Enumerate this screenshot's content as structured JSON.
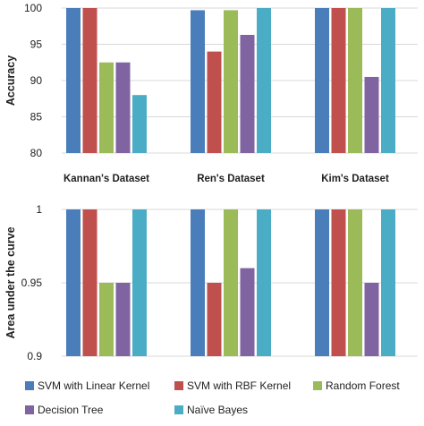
{
  "chart_data": [
    {
      "type": "bar",
      "ylabel": "Accuracy",
      "ylim": [
        80,
        100
      ],
      "yticks": [
        "80",
        "85",
        "90",
        "95",
        "100"
      ],
      "grid": true,
      "categories": [
        "Kannan's Dataset",
        "Ren's Dataset",
        "Kim's Dataset"
      ],
      "series": [
        {
          "name": "SVM with Linear Kernel",
          "color": "#4a7ebb",
          "values": [
            100,
            99.7,
            100
          ]
        },
        {
          "name": "SVM with RBF Kernel",
          "color": "#c0504d",
          "values": [
            100,
            94,
            100
          ]
        },
        {
          "name": "Random Forest",
          "color": "#9bbb59",
          "values": [
            92.5,
            99.7,
            100
          ]
        },
        {
          "name": "Decision Tree",
          "color": "#8064a2",
          "values": [
            92.5,
            96.3,
            90.5
          ]
        },
        {
          "name": "Naïve Bayes",
          "color": "#4bacc6",
          "values": [
            88,
            100,
            100
          ]
        }
      ]
    },
    {
      "type": "bar",
      "ylabel": "Area under the curve",
      "ylim": [
        0.9,
        1
      ],
      "yticks": [
        "0.9",
        "0.95",
        "1"
      ],
      "grid": true,
      "categories": [
        "Kannan's Dataset",
        "Ren's Dataset",
        "Kim's Dataset"
      ],
      "series": [
        {
          "name": "SVM with Linear Kernel",
          "color": "#4a7ebb",
          "values": [
            1,
            1,
            1
          ]
        },
        {
          "name": "SVM with RBF Kernel",
          "color": "#c0504d",
          "values": [
            1,
            0.95,
            1
          ]
        },
        {
          "name": "Random Forest",
          "color": "#9bbb59",
          "values": [
            0.95,
            1,
            1
          ]
        },
        {
          "name": "Decision Tree",
          "color": "#8064a2",
          "values": [
            0.95,
            0.96,
            0.95
          ]
        },
        {
          "name": "Naïve Bayes",
          "color": "#4bacc6",
          "values": [
            1,
            1,
            1
          ]
        }
      ]
    }
  ],
  "legend": {
    "placement": "bottom",
    "items": [
      {
        "label": "SVM with Linear Kernel",
        "color": "#4a7ebb"
      },
      {
        "label": "SVM with RBF Kernel",
        "color": "#c0504d"
      },
      {
        "label": "Random Forest",
        "color": "#9bbb59"
      },
      {
        "label": "Decision Tree",
        "color": "#8064a2"
      },
      {
        "label": "Naïve Bayes",
        "color": "#4bacc6"
      }
    ]
  }
}
